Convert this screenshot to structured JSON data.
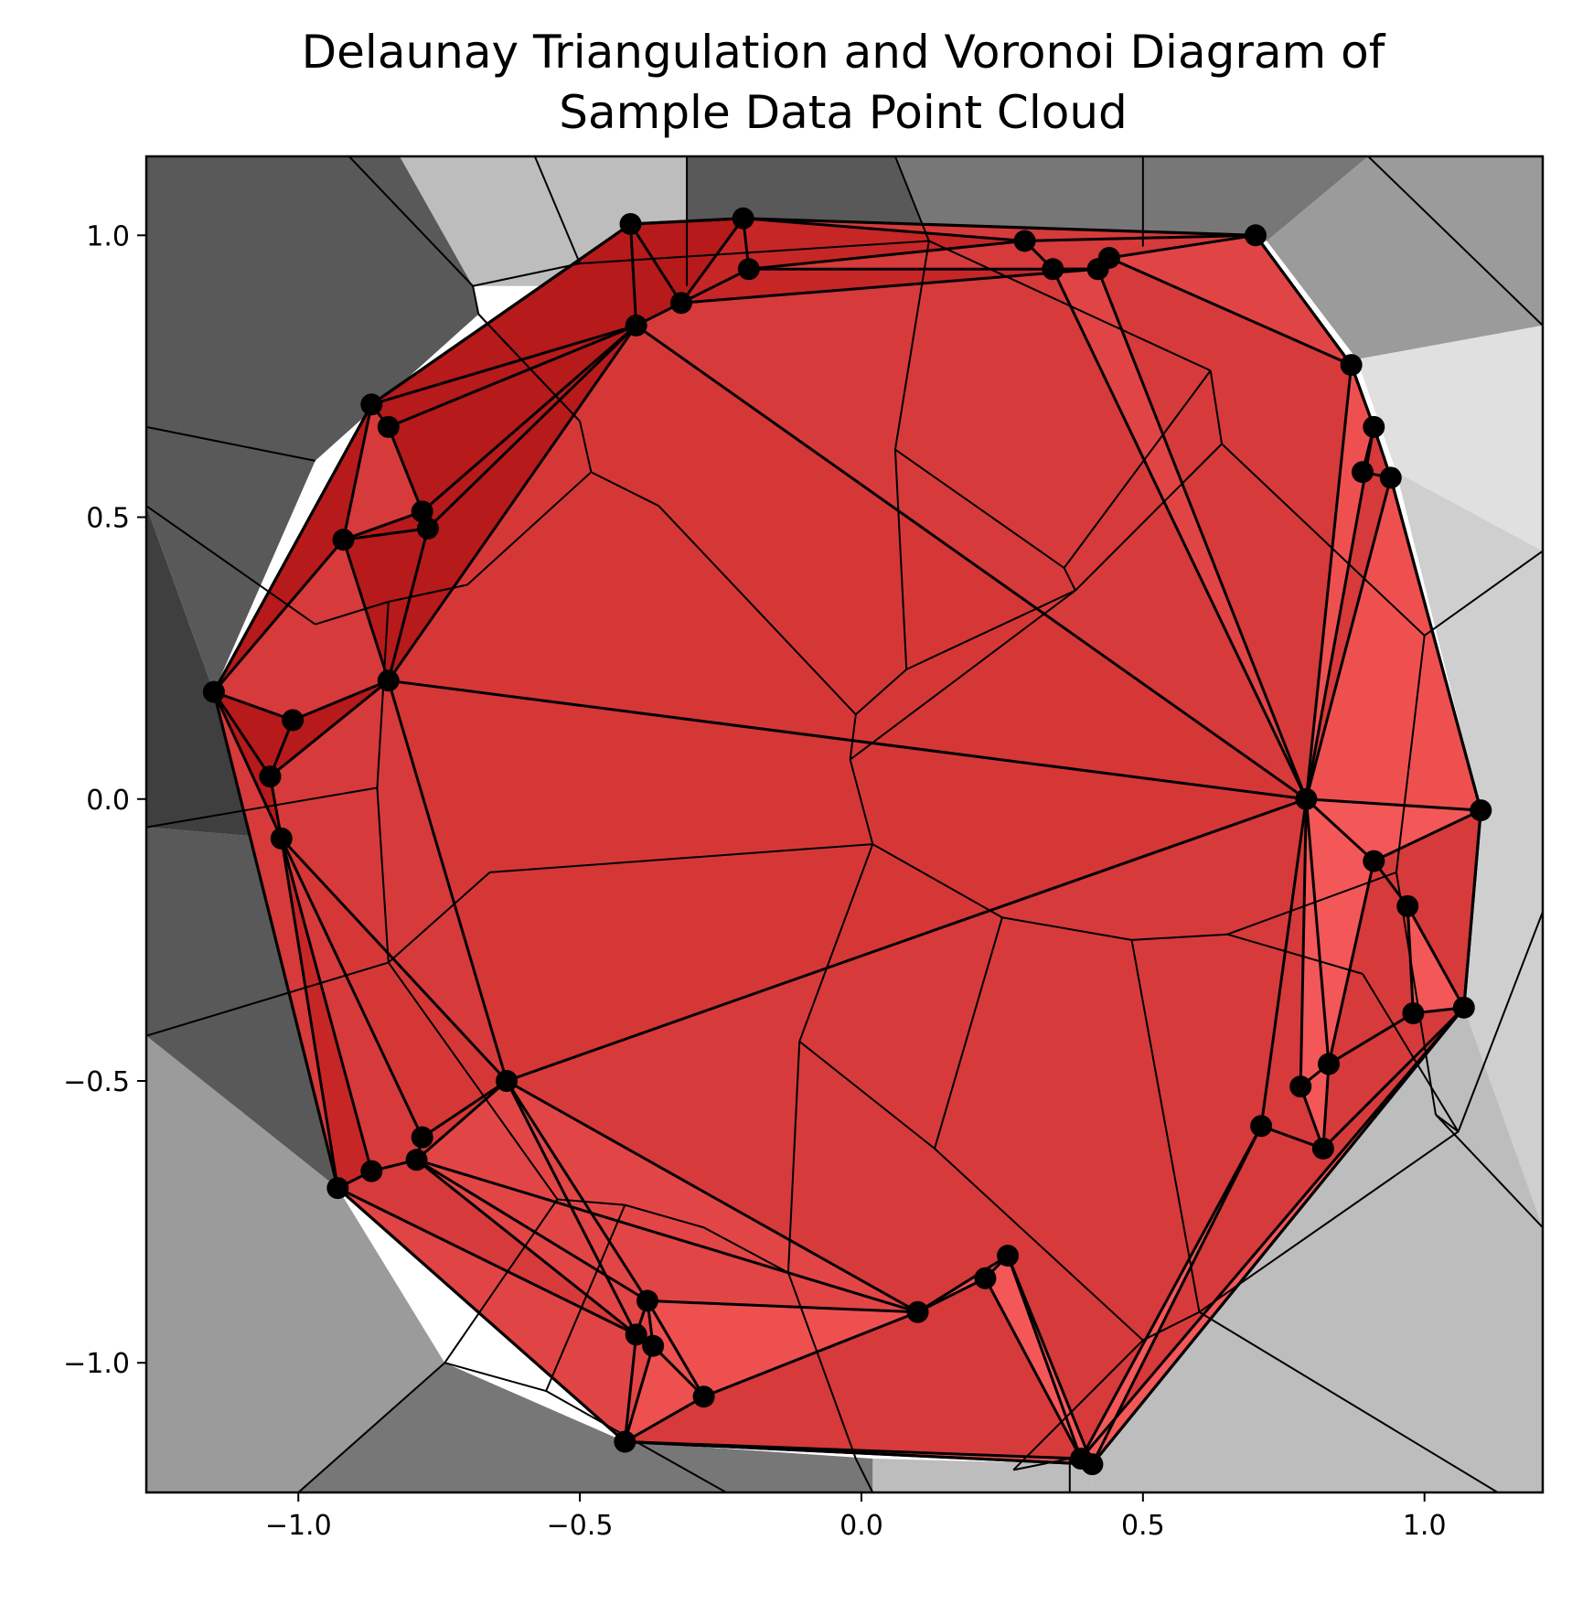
{
  "chart_data": {
    "type": "scatter",
    "title": "Delaunay Triangulation and Voronoi Diagram of Sample Data Point Cloud",
    "title_lines": [
      "Delaunay Triangulation and Voronoi Diagram of",
      "Sample Data Point Cloud"
    ],
    "xlabel": "",
    "ylabel": "",
    "xlim": [
      -1.27,
      1.21
    ],
    "ylim": [
      -1.23,
      1.14
    ],
    "xticks": [
      -1.0,
      -0.5,
      0.0,
      0.5,
      1.0
    ],
    "xtick_labels": [
      "−1.0",
      "−0.5",
      "0.0",
      "0.5",
      "1.0"
    ],
    "yticks": [
      1.0,
      0.5,
      0.0,
      -0.5,
      -1.0
    ],
    "ytick_labels": [
      "1.0",
      "0.5",
      "0.0",
      "−0.5",
      "−1.0"
    ],
    "grid": false,
    "legend": "none",
    "colors": {
      "points": "#000000",
      "triangle_palette": [
        "#b31818",
        "#c62526",
        "#d53737",
        "#e24545",
        "#f05252",
        "#f55a5a"
      ],
      "outside_gray_palette": [
        "#3f3f3f",
        "#595959",
        "#777777",
        "#9b9b9b",
        "#bdbdbd",
        "#cfcfcf",
        "#e0e0e0"
      ]
    },
    "points": [
      [
        -0.41,
        1.02
      ],
      [
        -0.21,
        1.03
      ],
      [
        -0.2,
        0.94
      ],
      [
        -0.32,
        0.88
      ],
      [
        -0.4,
        0.84
      ],
      [
        0.29,
        0.99
      ],
      [
        0.34,
        0.94
      ],
      [
        0.42,
        0.94
      ],
      [
        0.44,
        0.96
      ],
      [
        0.7,
        1.0
      ],
      [
        -0.87,
        0.7
      ],
      [
        -0.84,
        0.66
      ],
      [
        -0.78,
        0.51
      ],
      [
        -0.77,
        0.48
      ],
      [
        -0.92,
        0.46
      ],
      [
        -1.15,
        0.19
      ],
      [
        -1.01,
        0.14
      ],
      [
        -0.84,
        0.21
      ],
      [
        -1.05,
        0.04
      ],
      [
        -1.03,
        -0.07
      ],
      [
        0.79,
        0.0
      ],
      [
        0.87,
        0.77
      ],
      [
        0.91,
        0.66
      ],
      [
        0.89,
        0.58
      ],
      [
        0.94,
        0.57
      ],
      [
        1.1,
        -0.02
      ],
      [
        0.91,
        -0.11
      ],
      [
        0.97,
        -0.19
      ],
      [
        0.98,
        -0.38
      ],
      [
        1.07,
        -0.37
      ],
      [
        0.83,
        -0.47
      ],
      [
        0.78,
        -0.51
      ],
      [
        0.71,
        -0.58
      ],
      [
        0.82,
        -0.62
      ],
      [
        -0.63,
        -0.5
      ],
      [
        -0.78,
        -0.6
      ],
      [
        -0.79,
        -0.64
      ],
      [
        -0.87,
        -0.66
      ],
      [
        -0.93,
        -0.69
      ],
      [
        -0.38,
        -0.89
      ],
      [
        -0.37,
        -0.97
      ],
      [
        -0.4,
        -0.95
      ],
      [
        -0.28,
        -1.06
      ],
      [
        -0.42,
        -1.14
      ],
      [
        0.1,
        -0.91
      ],
      [
        0.22,
        -0.85
      ],
      [
        0.26,
        -0.81
      ],
      [
        0.39,
        -1.17
      ],
      [
        0.41,
        -1.18
      ]
    ],
    "voronoi_vertices": [
      [
        -0.69,
        0.91
      ],
      [
        -0.68,
        0.86
      ],
      [
        -0.5,
        0.67
      ],
      [
        -0.48,
        0.58
      ],
      [
        -0.36,
        0.52
      ],
      [
        -0.01,
        0.15
      ],
      [
        -0.02,
        0.07
      ],
      [
        0.02,
        -0.08
      ],
      [
        -0.66,
        -0.13
      ],
      [
        -0.84,
        0.35
      ],
      [
        -0.97,
        0.31
      ],
      [
        -0.86,
        0.02
      ],
      [
        -0.84,
        -0.29
      ],
      [
        -0.7,
        0.38
      ],
      [
        -0.5,
        0.95
      ],
      [
        0.06,
        0.62
      ],
      [
        0.08,
        0.23
      ],
      [
        0.38,
        0.37
      ],
      [
        0.36,
        0.41
      ],
      [
        0.12,
        0.99
      ],
      [
        0.62,
        0.76
      ],
      [
        0.64,
        0.63
      ],
      [
        1.0,
        0.29
      ],
      [
        0.95,
        -0.13
      ],
      [
        0.65,
        -0.24
      ],
      [
        0.48,
        -0.25
      ],
      [
        0.25,
        -0.21
      ],
      [
        0.13,
        -0.62
      ],
      [
        -0.11,
        -0.43
      ],
      [
        -0.13,
        -0.84
      ],
      [
        -0.28,
        -0.76
      ],
      [
        -0.42,
        -0.72
      ],
      [
        -0.54,
        -0.71
      ],
      [
        -0.74,
        -1.0
      ],
      [
        -0.56,
        -1.05
      ],
      [
        0.5,
        -0.96
      ],
      [
        0.6,
        -0.91
      ],
      [
        -0.01,
        -1.17
      ],
      [
        0.27,
        -1.19
      ],
      [
        0.37,
        -1.17
      ],
      [
        1.06,
        -0.59
      ],
      [
        0.89,
        -0.31
      ],
      [
        1.02,
        -0.56
      ]
    ],
    "triangle_edges": [
      [
        0,
        1
      ],
      [
        1,
        2
      ],
      [
        2,
        3
      ],
      [
        3,
        4
      ],
      [
        0,
        4
      ],
      [
        0,
        3
      ],
      [
        1,
        3
      ],
      [
        2,
        5
      ],
      [
        1,
        5
      ],
      [
        5,
        6
      ],
      [
        6,
        7
      ],
      [
        7,
        8
      ],
      [
        8,
        9
      ],
      [
        5,
        9
      ],
      [
        2,
        7
      ],
      [
        3,
        7
      ],
      [
        4,
        10
      ],
      [
        0,
        10
      ],
      [
        10,
        11
      ],
      [
        4,
        11
      ],
      [
        11,
        12
      ],
      [
        12,
        13
      ],
      [
        4,
        13
      ],
      [
        4,
        12
      ],
      [
        10,
        14
      ],
      [
        14,
        12
      ],
      [
        14,
        13
      ],
      [
        14,
        15
      ],
      [
        10,
        15
      ],
      [
        15,
        16
      ],
      [
        16,
        17
      ],
      [
        14,
        17
      ],
      [
        13,
        17
      ],
      [
        4,
        17
      ],
      [
        15,
        18
      ],
      [
        15,
        19
      ],
      [
        18,
        19
      ],
      [
        16,
        18
      ],
      [
        17,
        18
      ],
      [
        17,
        20
      ],
      [
        17,
        34
      ],
      [
        4,
        20
      ],
      [
        9,
        21
      ],
      [
        21,
        22
      ],
      [
        22,
        23
      ],
      [
        23,
        24
      ],
      [
        24,
        20
      ],
      [
        21,
        20
      ],
      [
        22,
        20
      ],
      [
        7,
        20
      ],
      [
        6,
        20
      ],
      [
        8,
        21
      ],
      [
        20,
        25
      ],
      [
        25,
        26
      ],
      [
        26,
        27
      ],
      [
        27,
        28
      ],
      [
        28,
        29
      ],
      [
        29,
        25
      ],
      [
        26,
        20
      ],
      [
        27,
        29
      ],
      [
        20,
        30
      ],
      [
        20,
        31
      ],
      [
        20,
        32
      ],
      [
        30,
        31
      ],
      [
        31,
        33
      ],
      [
        33,
        30
      ],
      [
        30,
        26
      ],
      [
        32,
        33
      ],
      [
        33,
        29
      ],
      [
        30,
        28
      ],
      [
        24,
        25
      ],
      [
        29,
        47
      ],
      [
        32,
        47
      ],
      [
        32,
        48
      ],
      [
        48,
        29
      ],
      [
        20,
        34
      ],
      [
        34,
        35
      ],
      [
        34,
        36
      ],
      [
        35,
        36
      ],
      [
        36,
        37
      ],
      [
        37,
        38
      ],
      [
        38,
        19
      ],
      [
        35,
        19
      ],
      [
        37,
        19
      ],
      [
        38,
        43
      ],
      [
        36,
        39
      ],
      [
        34,
        39
      ],
      [
        34,
        41
      ],
      [
        39,
        41
      ],
      [
        39,
        40
      ],
      [
        40,
        41
      ],
      [
        41,
        43
      ],
      [
        40,
        42
      ],
      [
        39,
        42
      ],
      [
        43,
        42
      ],
      [
        40,
        43
      ],
      [
        39,
        44
      ],
      [
        42,
        44
      ],
      [
        34,
        44
      ],
      [
        44,
        45
      ],
      [
        45,
        46
      ],
      [
        44,
        46
      ],
      [
        46,
        47
      ],
      [
        45,
        47
      ],
      [
        46,
        48
      ],
      [
        43,
        47
      ],
      [
        43,
        48
      ],
      [
        47,
        48
      ],
      [
        38,
        41
      ],
      [
        19,
        34
      ],
      [
        36,
        44
      ],
      [
        36,
        41
      ]
    ],
    "voronoi_edges": [
      [
        0,
        1
      ],
      [
        1,
        2
      ],
      [
        2,
        3
      ],
      [
        3,
        4
      ],
      [
        4,
        5
      ],
      [
        5,
        6
      ],
      [
        6,
        7
      ],
      [
        7,
        8
      ],
      [
        8,
        12
      ],
      [
        12,
        11
      ],
      [
        11,
        9
      ],
      [
        9,
        10
      ],
      [
        9,
        13
      ],
      [
        13,
        3
      ],
      [
        0,
        14
      ],
      [
        1,
        2
      ],
      [
        14,
        19
      ],
      [
        19,
        15
      ],
      [
        15,
        16
      ],
      [
        16,
        5
      ],
      [
        16,
        17
      ],
      [
        17,
        18
      ],
      [
        18,
        15
      ],
      [
        18,
        20
      ],
      [
        20,
        21
      ],
      [
        21,
        17
      ],
      [
        21,
        22
      ],
      [
        22,
        23
      ],
      [
        23,
        24
      ],
      [
        24,
        25
      ],
      [
        25,
        26
      ],
      [
        26,
        7
      ],
      [
        26,
        27
      ],
      [
        27,
        28
      ],
      [
        28,
        7
      ],
      [
        28,
        29
      ],
      [
        29,
        30
      ],
      [
        30,
        31
      ],
      [
        31,
        32
      ],
      [
        32,
        12
      ],
      [
        32,
        33
      ],
      [
        33,
        34
      ],
      [
        31,
        34
      ],
      [
        29,
        37
      ],
      [
        27,
        35
      ],
      [
        35,
        36
      ],
      [
        36,
        25
      ],
      [
        35,
        38
      ],
      [
        38,
        39
      ],
      [
        36,
        40
      ],
      [
        40,
        42
      ],
      [
        42,
        23
      ],
      [
        24,
        41
      ],
      [
        41,
        40
      ],
      [
        20,
        19
      ],
      [
        17,
        6
      ]
    ],
    "boundary_lines": [
      [
        [
          -0.58,
          1.14
        ],
        [
          -0.5,
          0.95
        ]
      ],
      [
        [
          -0.31,
          1.14
        ],
        [
          -0.31,
          0.91
        ]
      ],
      [
        [
          0.06,
          1.14
        ],
        [
          0.12,
          0.99
        ]
      ],
      [
        [
          0.5,
          1.14
        ],
        [
          0.5,
          0.98
        ]
      ],
      [
        [
          0.9,
          1.14
        ],
        [
          1.21,
          0.84
        ]
      ],
      [
        [
          1.21,
          0.44
        ],
        [
          1.0,
          0.29
        ]
      ],
      [
        [
          1.21,
          -0.2
        ],
        [
          1.06,
          -0.59
        ]
      ],
      [
        [
          1.21,
          -0.76
        ],
        [
          1.02,
          -0.56
        ]
      ],
      [
        [
          1.13,
          -1.23
        ],
        [
          0.6,
          -0.91
        ]
      ],
      [
        [
          0.37,
          -1.23
        ],
        [
          0.37,
          -1.17
        ]
      ],
      [
        [
          0.02,
          -1.23
        ],
        [
          -0.01,
          -1.17
        ]
      ],
      [
        [
          -0.24,
          -1.23
        ],
        [
          -0.56,
          -1.05
        ]
      ],
      [
        [
          -1.0,
          -1.23
        ],
        [
          -0.74,
          -1.0
        ]
      ],
      [
        [
          -1.27,
          -0.42
        ],
        [
          -0.84,
          -0.29
        ]
      ],
      [
        [
          -1.27,
          -0.05
        ],
        [
          -0.86,
          0.02
        ]
      ],
      [
        [
          -1.27,
          0.52
        ],
        [
          -0.97,
          0.31
        ]
      ],
      [
        [
          -1.27,
          0.66
        ],
        [
          -0.97,
          0.6
        ]
      ],
      [
        [
          -0.91,
          1.14
        ],
        [
          -0.69,
          0.91
        ]
      ]
    ],
    "outside_regions": [
      {
        "fill": "#595959",
        "vertices": [
          [
            -1.27,
            1.14
          ],
          [
            -0.82,
            1.14
          ],
          [
            -0.69,
            0.91
          ],
          [
            -0.68,
            0.86
          ],
          [
            -0.97,
            0.6
          ],
          [
            -1.27,
            0.66
          ]
        ]
      },
      {
        "fill": "#bdbdbd",
        "vertices": [
          [
            -0.82,
            1.14
          ],
          [
            -0.31,
            1.14
          ],
          [
            -0.31,
            0.91
          ],
          [
            -0.69,
            0.91
          ]
        ]
      },
      {
        "fill": "#595959",
        "vertices": [
          [
            -0.31,
            1.14
          ],
          [
            0.06,
            1.14
          ],
          [
            0.12,
            0.99
          ],
          [
            -0.31,
            0.95
          ]
        ]
      },
      {
        "fill": "#777777",
        "vertices": [
          [
            0.06,
            1.14
          ],
          [
            0.9,
            1.14
          ],
          [
            0.72,
            0.99
          ],
          [
            0.12,
            0.99
          ]
        ]
      },
      {
        "fill": "#9b9b9b",
        "vertices": [
          [
            0.9,
            1.14
          ],
          [
            1.21,
            1.14
          ],
          [
            1.21,
            0.84
          ],
          [
            0.88,
            0.78
          ],
          [
            0.72,
            0.99
          ]
        ]
      },
      {
        "fill": "#e0e0e0",
        "vertices": [
          [
            1.21,
            0.84
          ],
          [
            1.21,
            0.44
          ],
          [
            0.95,
            0.58
          ],
          [
            0.88,
            0.78
          ]
        ]
      },
      {
        "fill": "#cfcfcf",
        "vertices": [
          [
            1.21,
            0.44
          ],
          [
            1.21,
            -0.2
          ],
          [
            1.1,
            -0.02
          ],
          [
            0.95,
            0.58
          ]
        ]
      },
      {
        "fill": "#cfcfcf",
        "vertices": [
          [
            1.21,
            -0.2
          ],
          [
            1.21,
            -0.76
          ],
          [
            1.07,
            -0.37
          ],
          [
            1.1,
            -0.02
          ]
        ]
      },
      {
        "fill": "#bdbdbd",
        "vertices": [
          [
            1.21,
            -0.76
          ],
          [
            1.21,
            -1.23
          ],
          [
            0.41,
            -1.23
          ],
          [
            0.41,
            -1.18
          ],
          [
            1.07,
            -0.37
          ]
        ]
      },
      {
        "fill": "#bdbdbd",
        "vertices": [
          [
            0.41,
            -1.23
          ],
          [
            0.02,
            -1.23
          ],
          [
            0.02,
            -1.17
          ],
          [
            0.41,
            -1.18
          ]
        ]
      },
      {
        "fill": "#777777",
        "vertices": [
          [
            0.02,
            -1.23
          ],
          [
            -1.0,
            -1.23
          ],
          [
            -0.74,
            -1.0
          ],
          [
            -0.42,
            -1.14
          ],
          [
            0.02,
            -1.17
          ]
        ]
      },
      {
        "fill": "#9b9b9b",
        "vertices": [
          [
            -1.0,
            -1.23
          ],
          [
            -1.27,
            -1.23
          ],
          [
            -1.27,
            -0.42
          ],
          [
            -0.93,
            -0.69
          ],
          [
            -0.74,
            -1.0
          ]
        ]
      },
      {
        "fill": "#595959",
        "vertices": [
          [
            -1.27,
            -0.42
          ],
          [
            -1.27,
            -0.05
          ],
          [
            -1.03,
            -0.07
          ],
          [
            -0.93,
            -0.69
          ]
        ]
      },
      {
        "fill": "#3f3f3f",
        "vertices": [
          [
            -1.27,
            -0.05
          ],
          [
            -1.27,
            0.52
          ],
          [
            -1.15,
            0.19
          ],
          [
            -1.03,
            -0.07
          ]
        ]
      },
      {
        "fill": "#595959",
        "vertices": [
          [
            -1.27,
            0.52
          ],
          [
            -1.27,
            0.66
          ],
          [
            -0.97,
            0.6
          ],
          [
            -1.15,
            0.19
          ]
        ]
      }
    ]
  }
}
